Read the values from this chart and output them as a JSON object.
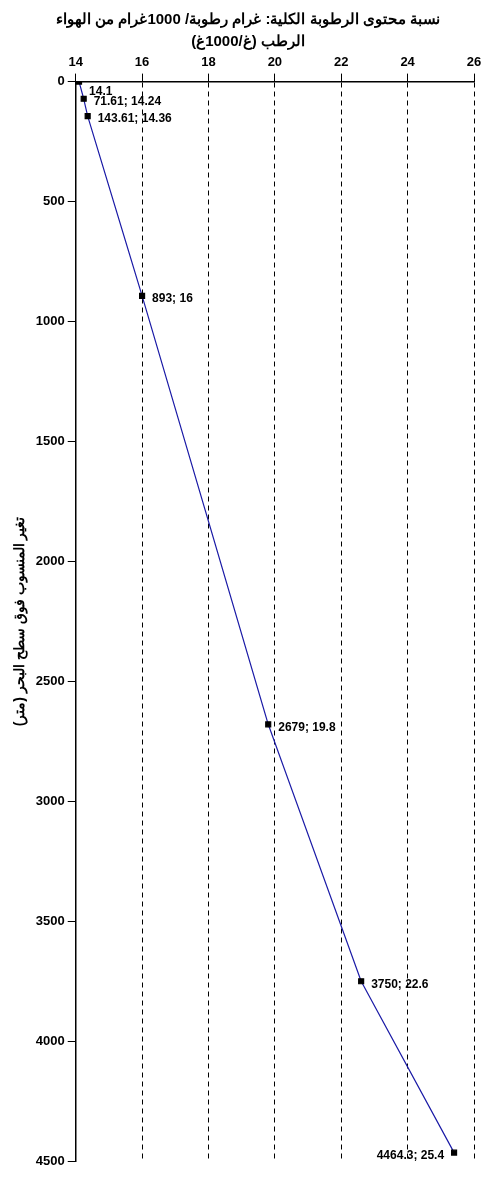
{
  "chart_data": {
    "type": "line",
    "xlabel": "نسبة محتوى الرطوبة الكلية: غرام رطوبة/ 1000غرام من الهواء الرطب (غ/1000غ)",
    "ylabel": "تغير المنسوب فوق سطح البحر (متر)",
    "x": [
      14.1,
      14.24,
      14.36,
      16,
      19.8,
      22.6,
      25.4
    ],
    "series": [
      {
        "color": "#1a1aa6",
        "values": [
          0,
          71.61,
          143.61,
          893,
          2679,
          3750,
          4464.3
        ],
        "value_labels": [
          null,
          "71.61; 14.24",
          "143.61; 14.36",
          "893; 16",
          "2679; 19.8",
          "3750; 22.6",
          "4464.3; 25.4"
        ]
      }
    ],
    "xlim": [
      14,
      26
    ],
    "xticks": [
      14,
      16,
      18,
      20,
      22,
      24,
      26
    ],
    "ylim": [
      4500,
      0
    ],
    "yticks": [
      0,
      500,
      1000,
      1500,
      2000,
      2500,
      3000,
      3500,
      4000,
      4500
    ],
    "annotations": [
      {
        "text": "14.1",
        "x": 14.1,
        "y": 0
      }
    ],
    "grid": "x",
    "marker": "square",
    "line_style": "solid",
    "legend": false
  }
}
